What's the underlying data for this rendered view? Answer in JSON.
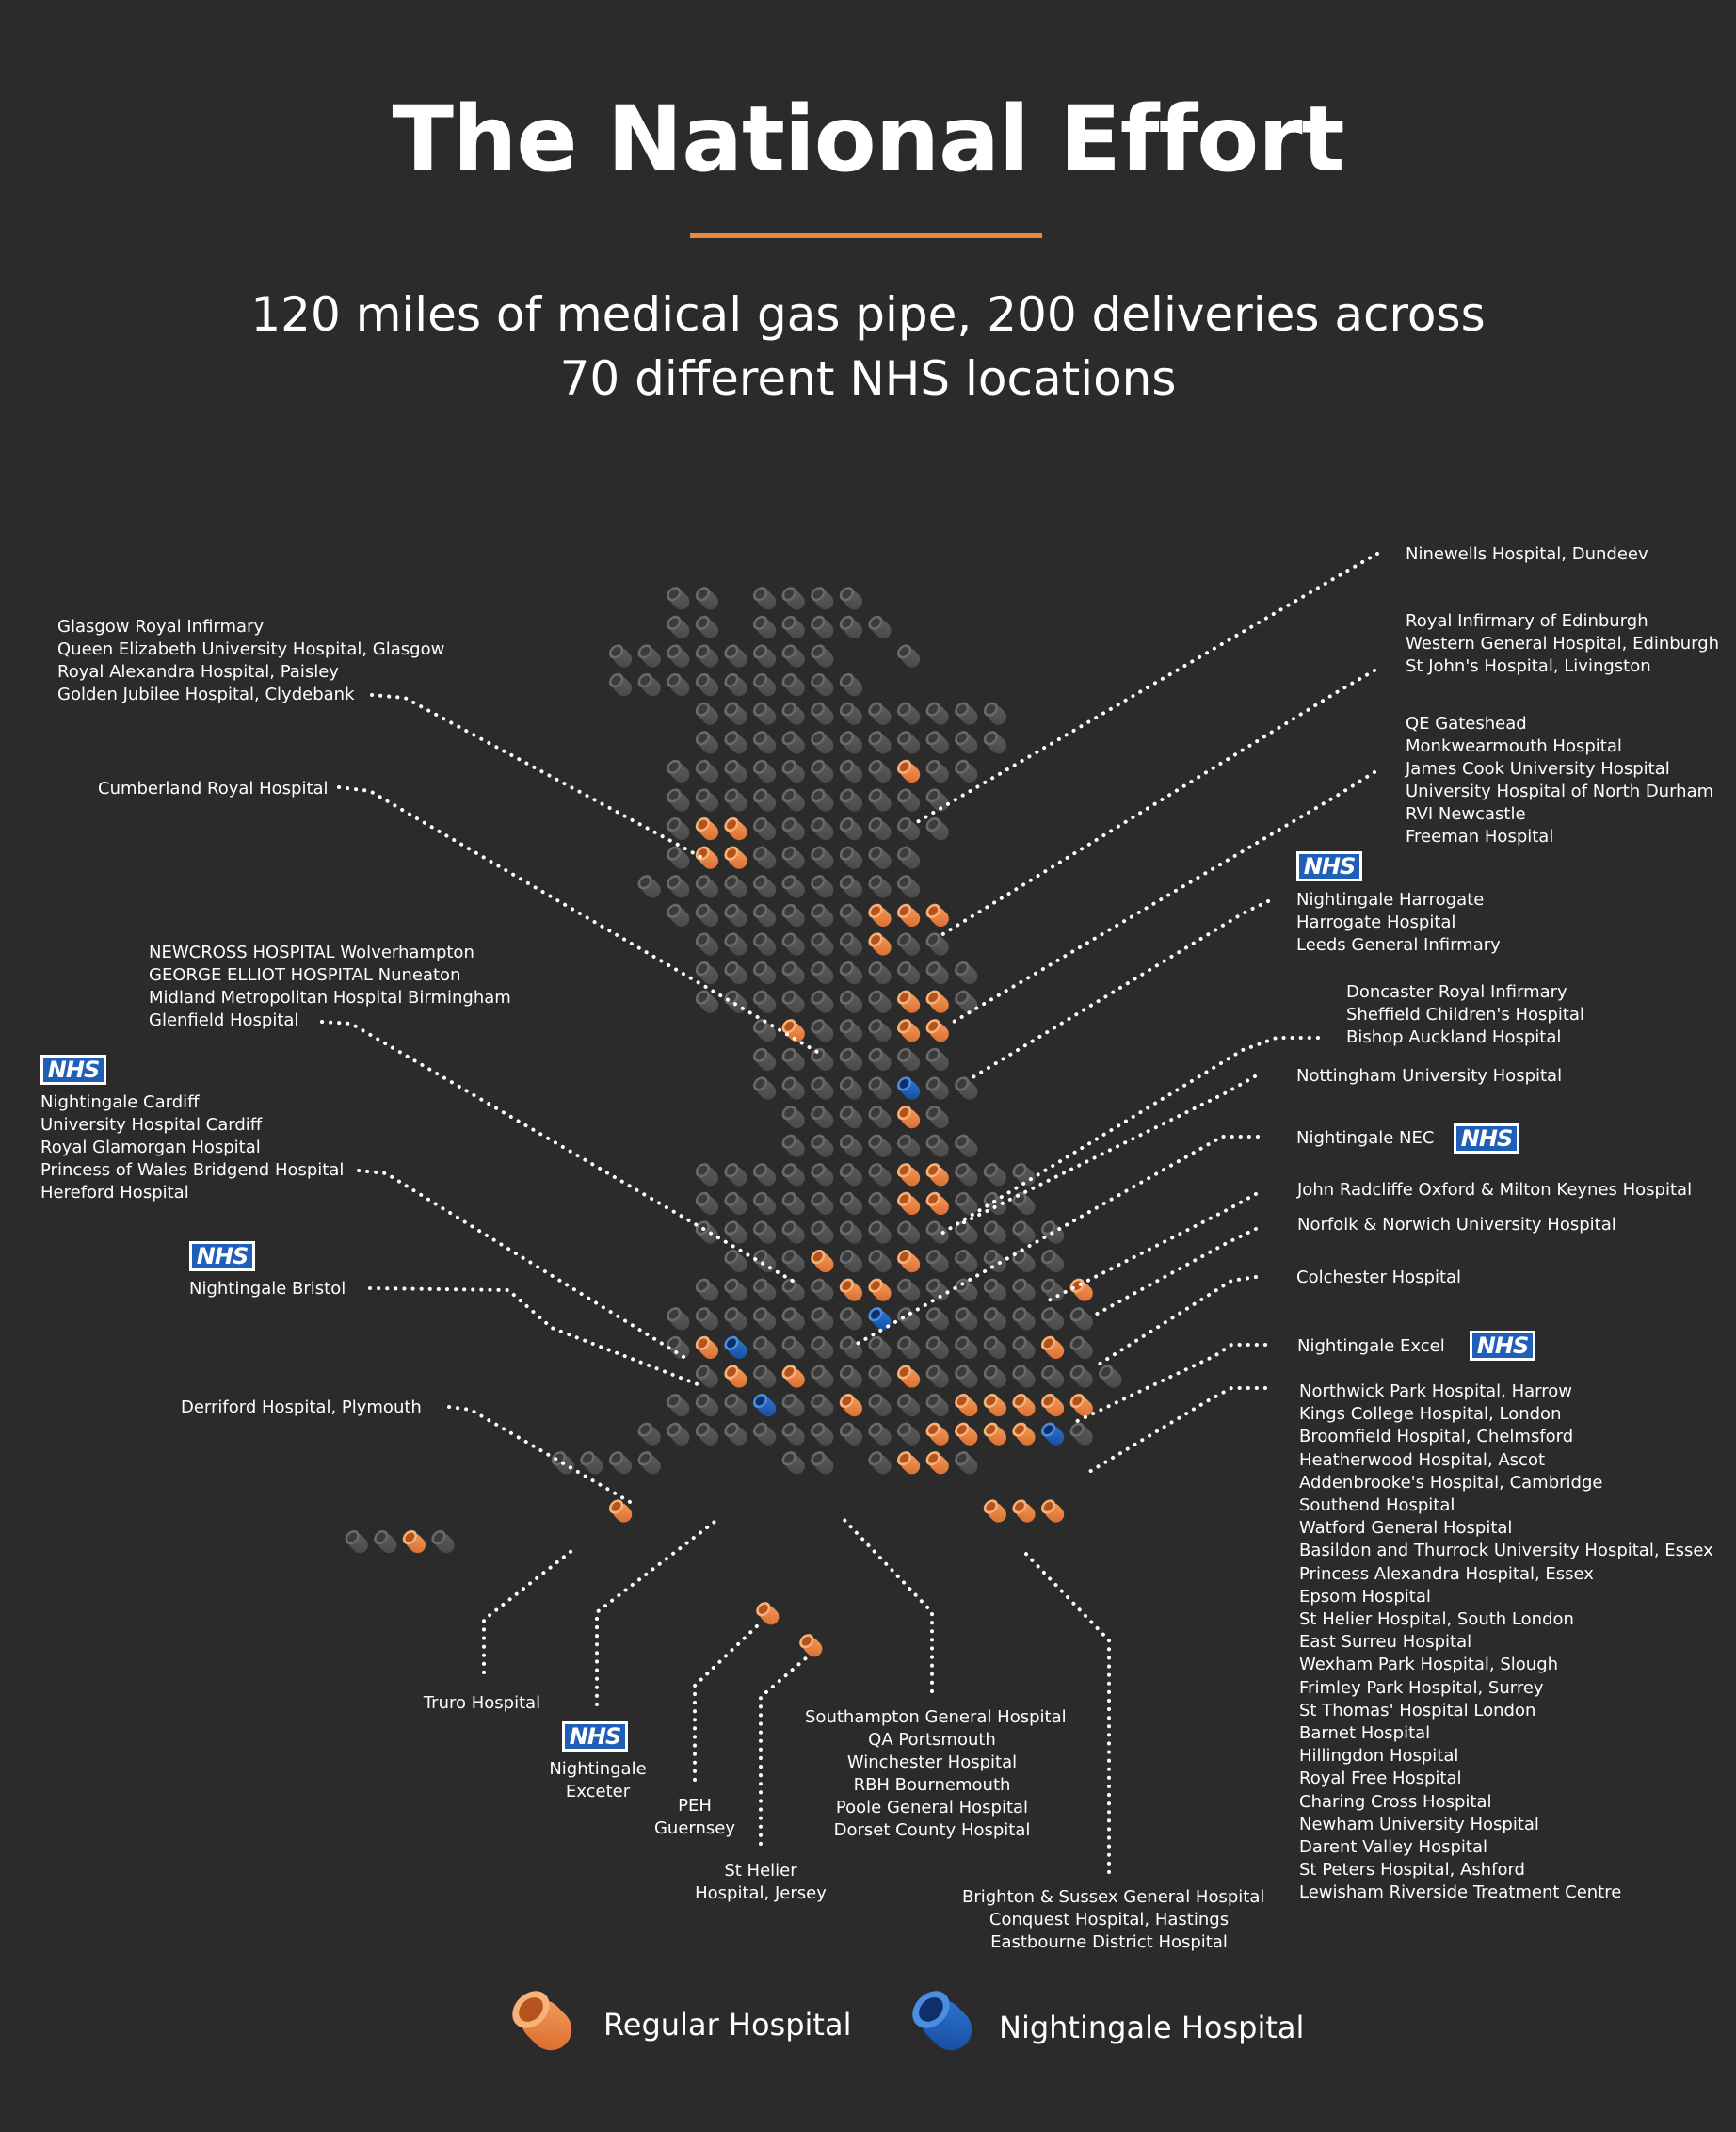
{
  "title": "The National Effort",
  "subtitle": {
    "line1": "120 miles of medical gas pipe, 200 deliveries across",
    "line2": "70 different NHS locations"
  },
  "colors": {
    "background": "#2b2b2b",
    "accent": "#e8893f",
    "regular": "#f08a3c",
    "nightingale": "#1f5fb8",
    "grey": "#555555"
  },
  "nhs_logo_text": "NHS",
  "labels": {
    "glasgow": [
      "Glasgow Royal Infirmary",
      "Queen Elizabeth University Hospital, Glasgow",
      "Royal Alexandra Hospital, Paisley",
      "Golden Jubilee Hospital, Clydebank"
    ],
    "cumberland": [
      "Cumberland Royal Hospital"
    ],
    "midlands": [
      "NEWCROSS HOSPITAL Wolverhampton",
      "GEORGE ELLIOT HOSPITAL Nuneaton",
      "Midland Metropolitan Hospital Birmingham",
      "Glenfield Hospital"
    ],
    "wales": [
      "Nightingale Cardiff",
      "University Hospital Cardiff",
      "Royal Glamorgan Hospital",
      "Princess of Wales Bridgend Hospital",
      "Hereford Hospital"
    ],
    "bristol": [
      "Nightingale Bristol"
    ],
    "derriford": [
      "Derriford Hospital, Plymouth"
    ],
    "truro": [
      "Truro Hospital"
    ],
    "exeter": [
      "Nightingale",
      "Exceter"
    ],
    "guernsey": [
      "PEH",
      "Guernsey"
    ],
    "jersey": [
      "St Helier",
      "Hospital, Jersey"
    ],
    "southampton": [
      "Southampton General Hospital",
      "QA Portsmouth",
      "Winchester Hospital",
      "RBH Bournemouth",
      "Poole General Hospital",
      "Dorset County Hospital"
    ],
    "brighton": [
      "Brighton & Sussex General Hospital",
      "Conquest Hospital, Hastings",
      "Eastbourne District Hospital"
    ],
    "dundee": [
      "Ninewells Hospital, Dundeev"
    ],
    "edinburgh": [
      "Royal Infirmary of Edinburgh",
      "Western General Hospital, Edinburgh",
      "St John's Hospital, Livingston"
    ],
    "northeast": [
      "QE Gateshead",
      "Monkwearmouth Hospital",
      "James Cook University Hospital",
      "University Hospital of North Durham",
      "RVI Newcastle",
      "Freeman Hospital"
    ],
    "harrogate": [
      "Nightingale Harrogate",
      "Harrogate Hospital",
      "Leeds General Infirmary"
    ],
    "doncaster": [
      "Doncaster Royal Infirmary",
      "Sheffield Children's Hospital",
      "Bishop Auckland Hospital"
    ],
    "nottingham": [
      "Nottingham University Hospital"
    ],
    "nec": [
      "Nightingale NEC"
    ],
    "oxford": [
      "John Radcliffe Oxford & Milton Keynes Hospital"
    ],
    "norwich": [
      "Norfolk & Norwich University Hospital"
    ],
    "colchester": [
      "Colchester Hospital"
    ],
    "excel": [
      "Nightingale Excel"
    ],
    "london": [
      "Northwick Park Hospital, Harrow",
      "Kings College Hospital, London",
      "Broomfield Hospital, Chelmsford",
      "Heatherwood Hospital, Ascot",
      "Addenbrooke's Hospital, Cambridge",
      "Southend Hospital",
      "Watford General Hospital",
      "Basildon and Thurrock University Hospital, Essex",
      "Princess Alexandra Hospital, Essex",
      "Epsom Hospital",
      "St Helier Hospital, South London",
      "East Surreu Hospital",
      "Wexham Park Hospital, Slough",
      "Frimley Park Hospital, Surrey",
      "St Thomas' Hospital London",
      "Barnet Hospital",
      "Hillingdon Hospital",
      "Royal Free Hospital",
      "Charing Cross Hospital",
      "Newham University Hospital",
      "Darent Valley Hospital",
      "St Peters Hospital, Ashford",
      "Lewisham Riverside Treatment Centre"
    ]
  },
  "legend": {
    "regular": "Regular Hospital",
    "nightingale": "Nightingale Hospital"
  }
}
